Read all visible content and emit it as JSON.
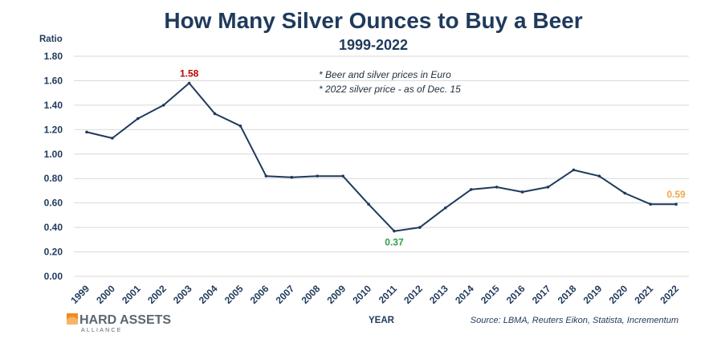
{
  "colors": {
    "line": "#1f3a5c",
    "grid": "#d9d9d9",
    "max_label": "#c00000",
    "min_label": "#2e9e48",
    "last_label": "#f0a848",
    "logo_orange": "#f08c1e"
  },
  "header": {
    "title": "How Many Silver Ounces to Buy a Beer",
    "subtitle": "1999-2022"
  },
  "notes": [
    "* Beer and silver prices in Euro",
    "* 2022 silver price - as of Dec. 15"
  ],
  "source": "Source:  LBMA, Reuters Eikon, Statista, Incrementum",
  "logo": {
    "icon": "sunrise-logo-icon",
    "main": "HARD ASSETS",
    "sub": "ALLIANCE"
  },
  "chart_data": {
    "type": "line",
    "title": "How Many Silver Ounces to Buy a Beer",
    "subtitle": "1999-2022",
    "xlabel": "YEAR",
    "ylabel": "Ratio",
    "ylim": [
      0,
      1.8
    ],
    "yticks": [
      "0.00",
      "0.20",
      "0.40",
      "0.60",
      "0.80",
      "1.00",
      "1.20",
      "1.40",
      "1.60",
      "1.80"
    ],
    "grid": true,
    "x": [
      "1999",
      "2000",
      "2001",
      "2002",
      "2003",
      "2004",
      "2005",
      "2006",
      "2007",
      "2008",
      "2009",
      "2010",
      "2011",
      "2012",
      "2013",
      "2014",
      "2015",
      "2016",
      "2017",
      "2018",
      "2019",
      "2020",
      "2021",
      "2022"
    ],
    "series": [
      {
        "values": [
          1.18,
          1.13,
          1.29,
          1.4,
          1.58,
          1.33,
          1.23,
          0.82,
          0.81,
          0.82,
          0.82,
          0.59,
          0.37,
          0.4,
          0.56,
          0.71,
          0.73,
          0.69,
          0.73,
          0.87,
          0.82,
          0.68,
          0.59,
          0.59
        ]
      }
    ],
    "annotations": [
      {
        "year": "2003",
        "text": "1.58",
        "color_key": "max_label"
      },
      {
        "year": "2011",
        "text": "0.37",
        "color_key": "min_label"
      },
      {
        "year": "2022",
        "text": "0.59",
        "color_key": "last_label"
      }
    ]
  }
}
